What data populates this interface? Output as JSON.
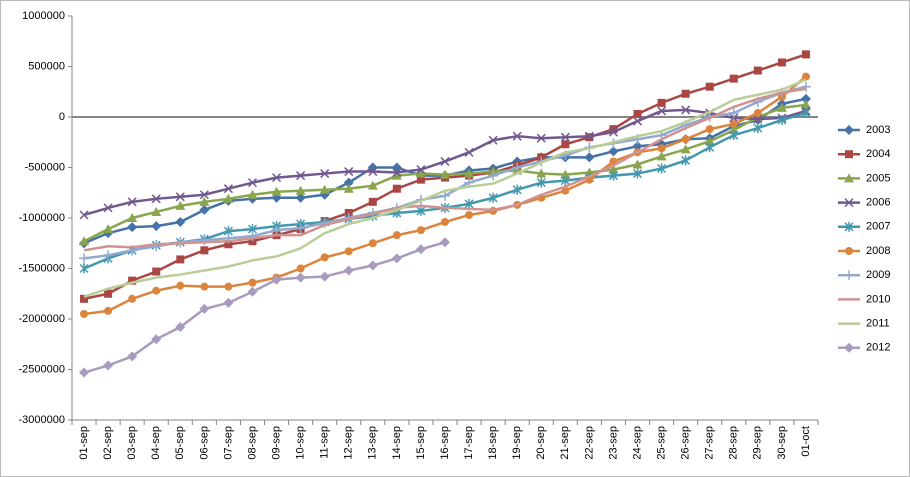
{
  "chart_data": {
    "type": "line",
    "categories": [
      "01-sep",
      "02-sep",
      "03-sep",
      "04-sep",
      "05-sep",
      "06-sep",
      "07-sep",
      "08-sep",
      "09-sep",
      "10-sep",
      "11-sep",
      "12-sep",
      "13-sep",
      "14-sep",
      "15-sep",
      "16-sep",
      "17-sep",
      "18-sep",
      "19-sep",
      "20-sep",
      "21-sep",
      "22-sep",
      "23-sep",
      "24-sep",
      "25-sep",
      "26-sep",
      "27-sep",
      "28-sep",
      "29-sep",
      "30-sep",
      "01-oct"
    ],
    "ylim": [
      -3000000,
      1000000
    ],
    "yticks": [
      -3000000,
      -2500000,
      -2000000,
      -1500000,
      -1000000,
      -500000,
      0,
      500000,
      1000000
    ],
    "grid": false,
    "legend": "right",
    "series": [
      {
        "name": "2003",
        "color": "#4572a7",
        "marker": "diamond",
        "values": [
          -1250000,
          -1150000,
          -1090000,
          -1080000,
          -1040000,
          -920000,
          -830000,
          -810000,
          -800000,
          -800000,
          -770000,
          -650000,
          -500000,
          -500000,
          -580000,
          -580000,
          -530000,
          -510000,
          -440000,
          -400000,
          -400000,
          -400000,
          -340000,
          -290000,
          -270000,
          -220000,
          -210000,
          -90000,
          -30000,
          130000,
          180000
        ]
      },
      {
        "name": "2004",
        "color": "#aa4643",
        "marker": "square",
        "values": [
          -1800000,
          -1750000,
          -1620000,
          -1530000,
          -1410000,
          -1320000,
          -1260000,
          -1230000,
          -1170000,
          -1110000,
          -1030000,
          -950000,
          -840000,
          -710000,
          -620000,
          -600000,
          -580000,
          -550000,
          -480000,
          -400000,
          -270000,
          -200000,
          -120000,
          30000,
          140000,
          230000,
          300000,
          380000,
          460000,
          540000,
          620000
        ]
      },
      {
        "name": "2005",
        "color": "#89a54e",
        "marker": "triangle",
        "values": [
          -1230000,
          -1110000,
          -1000000,
          -940000,
          -880000,
          -840000,
          -810000,
          -770000,
          -740000,
          -730000,
          -720000,
          -710000,
          -680000,
          -580000,
          -560000,
          -570000,
          -560000,
          -540000,
          -530000,
          -560000,
          -570000,
          -550000,
          -520000,
          -470000,
          -390000,
          -320000,
          -240000,
          -130000,
          0,
          90000,
          120000
        ]
      },
      {
        "name": "2006",
        "color": "#71588f",
        "marker": "x",
        "values": [
          -970000,
          -900000,
          -840000,
          -810000,
          -790000,
          -770000,
          -710000,
          -650000,
          -600000,
          -580000,
          -560000,
          -540000,
          -540000,
          -550000,
          -520000,
          -440000,
          -350000,
          -230000,
          -190000,
          -210000,
          -200000,
          -190000,
          -150000,
          -40000,
          60000,
          70000,
          40000,
          -10000,
          -20000,
          -10000,
          60000
        ]
      },
      {
        "name": "2007",
        "color": "#4198af",
        "marker": "star",
        "values": [
          -1500000,
          -1400000,
          -1320000,
          -1270000,
          -1240000,
          -1210000,
          -1130000,
          -1110000,
          -1080000,
          -1060000,
          -1040000,
          -1010000,
          -980000,
          -950000,
          -930000,
          -900000,
          -860000,
          -800000,
          -720000,
          -650000,
          -630000,
          -600000,
          -580000,
          -560000,
          -510000,
          -430000,
          -300000,
          -180000,
          -110000,
          -30000,
          40000
        ]
      },
      {
        "name": "2008",
        "color": "#db843d",
        "marker": "circle",
        "values": [
          -1950000,
          -1920000,
          -1800000,
          -1720000,
          -1670000,
          -1680000,
          -1680000,
          -1640000,
          -1590000,
          -1500000,
          -1390000,
          -1330000,
          -1250000,
          -1170000,
          -1120000,
          -1040000,
          -970000,
          -930000,
          -870000,
          -800000,
          -730000,
          -620000,
          -440000,
          -350000,
          -310000,
          -220000,
          -120000,
          -70000,
          40000,
          200000,
          400000
        ]
      },
      {
        "name": "2009",
        "color": "#93a9cf",
        "marker": "plus",
        "values": [
          -1400000,
          -1370000,
          -1320000,
          -1280000,
          -1240000,
          -1220000,
          -1200000,
          -1180000,
          -1120000,
          -1100000,
          -1050000,
          -1000000,
          -950000,
          -900000,
          -820000,
          -780000,
          -650000,
          -580000,
          -500000,
          -440000,
          -380000,
          -300000,
          -260000,
          -220000,
          -180000,
          -80000,
          0,
          40000,
          150000,
          240000,
          300000
        ]
      },
      {
        "name": "2010",
        "color": "#d19392",
        "marker": "none",
        "values": [
          -1320000,
          -1280000,
          -1290000,
          -1260000,
          -1250000,
          -1240000,
          -1230000,
          -1200000,
          -1170000,
          -1170000,
          -1070000,
          -1010000,
          -960000,
          -900000,
          -880000,
          -900000,
          -910000,
          -920000,
          -870000,
          -770000,
          -690000,
          -590000,
          -480000,
          -350000,
          -220000,
          -110000,
          -10000,
          100000,
          180000,
          240000,
          280000
        ]
      },
      {
        "name": "2011",
        "color": "#b9cd96",
        "marker": "none",
        "values": [
          -1780000,
          -1700000,
          -1640000,
          -1590000,
          -1560000,
          -1520000,
          -1480000,
          -1420000,
          -1380000,
          -1300000,
          -1150000,
          -1060000,
          -1000000,
          -920000,
          -830000,
          -730000,
          -690000,
          -660000,
          -560000,
          -450000,
          -350000,
          -310000,
          -250000,
          -190000,
          -140000,
          -50000,
          50000,
          170000,
          220000,
          270000,
          370000
        ]
      },
      {
        "name": "2012",
        "color": "#a99bbd",
        "marker": "diamond",
        "values": [
          -2530000,
          -2460000,
          -2370000,
          -2200000,
          -2080000,
          -1900000,
          -1840000,
          -1730000,
          -1610000,
          -1590000,
          -1580000,
          -1520000,
          -1470000,
          -1400000,
          -1310000,
          -1240000,
          null,
          null,
          null,
          null,
          null,
          null,
          null,
          null,
          null,
          null,
          null,
          null,
          null,
          null,
          null
        ]
      }
    ]
  }
}
